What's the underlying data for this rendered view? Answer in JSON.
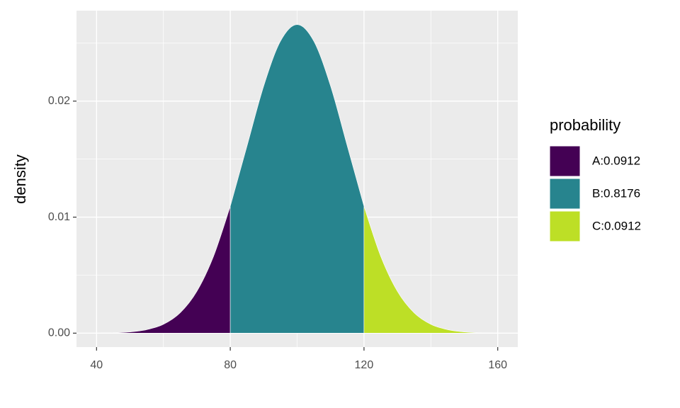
{
  "chart_data": {
    "type": "area",
    "ylabel": "density",
    "legend_title": "probability",
    "legend_position": "right",
    "grid": true,
    "x": [
      40,
      45,
      50,
      55,
      60,
      65,
      70,
      75,
      80,
      85,
      90,
      95,
      100,
      105,
      110,
      115,
      120,
      125,
      130,
      135,
      140,
      145,
      150,
      155,
      160
    ],
    "series": [
      {
        "name": "A:0.0912",
        "color": "#440154",
        "values": [
          1e-05,
          3e-05,
          0.0001,
          0.0003,
          0.00076,
          0.00175,
          0.0036,
          0.00663,
          0.01093,
          null,
          null,
          null,
          null,
          null,
          null,
          null,
          null,
          null,
          null,
          null,
          null,
          null,
          null,
          null,
          null
        ]
      },
      {
        "name": "B:0.8176",
        "color": "#27848e",
        "values": [
          null,
          null,
          null,
          null,
          null,
          null,
          null,
          null,
          0.01093,
          0.01613,
          0.0213,
          0.02516,
          0.0266,
          0.02516,
          0.0213,
          0.01613,
          0.01093,
          null,
          null,
          null,
          null,
          null,
          null,
          null,
          null
        ]
      },
      {
        "name": "C:0.0912",
        "color": "#bddf26",
        "values": [
          null,
          null,
          null,
          null,
          null,
          null,
          null,
          null,
          null,
          null,
          null,
          null,
          null,
          null,
          null,
          null,
          0.01093,
          0.00663,
          0.0036,
          0.00175,
          0.00076,
          0.0003,
          0.0001,
          3e-05,
          1e-05
        ]
      }
    ],
    "xlim": [
      34,
      166
    ],
    "xticks": [
      40,
      80,
      120,
      160
    ],
    "ylim": [
      -0.0012,
      0.0278
    ],
    "yticks": [
      {
        "value": 0,
        "label": "0.00"
      },
      {
        "value": 0.01,
        "label": "0.01"
      },
      {
        "value": 0.02,
        "label": "0.02"
      }
    ]
  }
}
